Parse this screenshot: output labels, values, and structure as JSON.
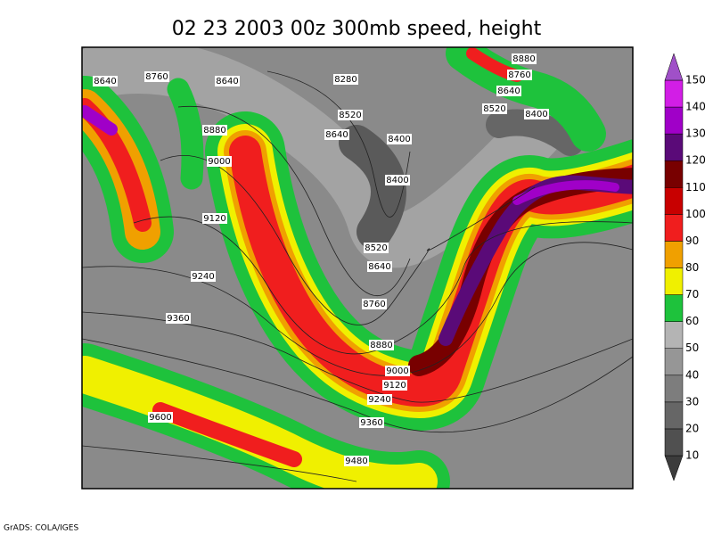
{
  "title": "02 23 2003 00z 300mb speed, height",
  "footer": "GrADS: COLA/IGES",
  "colorbar": {
    "levels": [
      10,
      20,
      30,
      40,
      50,
      60,
      70,
      80,
      90,
      100,
      110,
      120,
      130,
      140,
      150
    ],
    "colors": [
      "#3c3c3c",
      "#505050",
      "#666666",
      "#7d7d7d",
      "#969696",
      "#b4b4b4",
      "#1ec23c",
      "#f0f000",
      "#f0a000",
      "#f01e1e",
      "#c80000",
      "#780000",
      "#5a0a78",
      "#a000c8",
      "#d21ee6",
      "#a050c8"
    ]
  },
  "contour_labels": [
    8640,
    8760,
    8640,
    8280,
    8880,
    8760,
    8640,
    8520,
    8400,
    8520,
    8880,
    8640,
    8400,
    9000,
    8400,
    9120,
    8520,
    8640,
    9240,
    8760,
    9360,
    8880,
    9000,
    9120,
    9240,
    9360,
    9600,
    9480
  ]
}
